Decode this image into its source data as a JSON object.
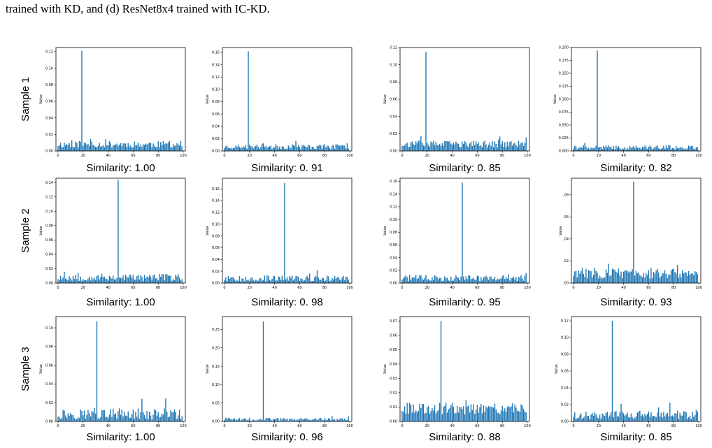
{
  "caption": "trained with KD, and (d) ResNet8x4 trained with IC-KD.",
  "rows": [
    "Sample 1",
    "Sample 2",
    "Sample 3"
  ],
  "colors": {
    "bar": "#1f77b4",
    "axis": "#000000"
  },
  "chart_data": [
    {
      "type": "bar",
      "row": 0,
      "col": 0,
      "similarity_label": "Similarity: 1.00",
      "ylabel": "Value",
      "xlim": [
        0,
        100
      ],
      "xticks": [
        0,
        20,
        40,
        60,
        80,
        100
      ],
      "ylim": [
        0,
        0.125
      ],
      "yticks": [
        0.0,
        0.02,
        0.04,
        0.06,
        0.08,
        0.1,
        0.12
      ],
      "ytick_labels": [
        "0.00",
        "0.02",
        "0.04",
        "0.06",
        "0.08",
        "0.10",
        "0.12"
      ],
      "peak_index": 19,
      "peak_value": 0.121,
      "baseline": 0.008,
      "noise": 0.004,
      "seed": 11
    },
    {
      "type": "bar",
      "row": 0,
      "col": 1,
      "similarity_label": "Similarity: 0. 91",
      "ylabel": "Value",
      "xlim": [
        0,
        100
      ],
      "xticks": [
        0,
        20,
        40,
        60,
        80,
        100
      ],
      "ylim": [
        0,
        0.168
      ],
      "yticks": [
        0.0,
        0.02,
        0.04,
        0.06,
        0.08,
        0.1,
        0.12,
        0.14,
        0.16
      ],
      "ytick_labels": [
        "0.00",
        "0.02",
        "0.04",
        "0.06",
        "0.08",
        "0.10",
        "0.12",
        "0.14",
        "0.16"
      ],
      "peak_index": 19,
      "peak_value": 0.162,
      "baseline": 0.007,
      "noise": 0.004,
      "seed": 23
    },
    {
      "type": "bar",
      "row": 0,
      "col": 2,
      "similarity_label": "Similarity: 0. 85",
      "ylabel": "Value",
      "xlim": [
        0,
        100
      ],
      "xticks": [
        0,
        20,
        40,
        60,
        80,
        100
      ],
      "ylim": [
        0,
        0.12
      ],
      "yticks": [
        0.0,
        0.02,
        0.04,
        0.06,
        0.08,
        0.1,
        0.12
      ],
      "ytick_labels": [
        "0.00",
        "0.02",
        "0.04",
        "0.06",
        "0.08",
        "0.10",
        "0.12"
      ],
      "peak_index": 19,
      "peak_value": 0.115,
      "baseline": 0.008,
      "noise": 0.004,
      "seed": 37
    },
    {
      "type": "bar",
      "row": 0,
      "col": 3,
      "similarity_label": "Similarity: 0. 82",
      "ylabel": "Value",
      "xlim": [
        0,
        100
      ],
      "xticks": [
        0,
        20,
        40,
        60,
        80,
        100
      ],
      "ylim": [
        0,
        0.2
      ],
      "yticks": [
        0.0,
        0.025,
        0.05,
        0.075,
        0.1,
        0.125,
        0.15,
        0.175,
        0.2
      ],
      "ytick_labels": [
        "0.000",
        "0.025",
        "0.050",
        "0.075",
        "0.100",
        "0.125",
        "0.150",
        "0.175",
        "0.200"
      ],
      "peak_index": 19,
      "peak_value": 0.194,
      "baseline": 0.007,
      "noise": 0.004,
      "seed": 41
    },
    {
      "type": "bar",
      "row": 1,
      "col": 0,
      "similarity_label": "Similarity: 1.00",
      "ylabel": "Value",
      "xlim": [
        0,
        100
      ],
      "xticks": [
        0,
        20,
        40,
        60,
        80,
        100
      ],
      "ylim": [
        0,
        0.146
      ],
      "yticks": [
        0.0,
        0.02,
        0.04,
        0.06,
        0.08,
        0.1,
        0.12,
        0.14
      ],
      "ytick_labels": [
        "0.00",
        "0.02",
        "0.04",
        "0.06",
        "0.08",
        "0.10",
        "0.12",
        "0.14"
      ],
      "peak_index": 48,
      "peak_value": 0.144,
      "baseline": 0.008,
      "noise": 0.005,
      "seed": 53
    },
    {
      "type": "bar",
      "row": 1,
      "col": 1,
      "similarity_label": "Similarity: 0. 98",
      "ylabel": "Value",
      "xlim": [
        0,
        100
      ],
      "xticks": [
        0,
        20,
        40,
        60,
        80,
        100
      ],
      "ylim": [
        0,
        0.178
      ],
      "yticks": [
        0.0,
        0.02,
        0.04,
        0.06,
        0.08,
        0.1,
        0.12,
        0.14,
        0.16
      ],
      "ytick_labels": [
        "0.00",
        "0.02",
        "0.04",
        "0.06",
        "0.08",
        "0.10",
        "0.12",
        "0.14",
        "0.16"
      ],
      "peak_index": 48,
      "peak_value": 0.17,
      "baseline": 0.008,
      "noise": 0.005,
      "seed": 67
    },
    {
      "type": "bar",
      "row": 1,
      "col": 2,
      "similarity_label": "Similarity: 0. 95",
      "ylabel": "Value",
      "xlim": [
        0,
        100
      ],
      "xticks": [
        0,
        20,
        40,
        60,
        80,
        100
      ],
      "ylim": [
        0,
        0.165
      ],
      "yticks": [
        0.0,
        0.02,
        0.04,
        0.06,
        0.08,
        0.1,
        0.12,
        0.14,
        0.16
      ],
      "ytick_labels": [
        "0.00",
        "0.02",
        "0.04",
        "0.06",
        "0.08",
        "0.10",
        "0.12",
        "0.14",
        "0.16"
      ],
      "peak_index": 48,
      "peak_value": 0.158,
      "baseline": 0.008,
      "noise": 0.005,
      "seed": 71
    },
    {
      "type": "bar",
      "row": 1,
      "col": 3,
      "similarity_label": "Similarity: 0. 93",
      "ylabel": "Value",
      "xlim": [
        0,
        100
      ],
      "xticks": [
        0,
        20,
        40,
        60,
        80,
        100
      ],
      "ylim": [
        0,
        0.095
      ],
      "yticks": [
        0.0,
        0.02,
        0.04,
        0.06,
        0.08
      ],
      "ytick_labels": [
        ".00",
        ".02",
        ".04",
        ".06",
        ".08"
      ],
      "peak_index": 48,
      "peak_value": 0.092,
      "baseline": 0.009,
      "noise": 0.005,
      "seed": 83
    },
    {
      "type": "bar",
      "row": 2,
      "col": 0,
      "similarity_label": "Similarity: 1.00",
      "ylabel": "Value",
      "xlim": [
        0,
        100
      ],
      "xticks": [
        0,
        20,
        40,
        60,
        80,
        100
      ],
      "ylim": [
        0,
        0.112
      ],
      "yticks": [
        0.0,
        0.02,
        0.04,
        0.06,
        0.08,
        0.1
      ],
      "ytick_labels": [
        "0.00",
        "0.02",
        "0.04",
        "0.06",
        "0.08",
        "0.10"
      ],
      "peak_index": 31,
      "peak_value": 0.107,
      "baseline": 0.008,
      "noise": 0.006,
      "seed": 97
    },
    {
      "type": "bar",
      "row": 2,
      "col": 1,
      "similarity_label": "Similarity: 0. 96",
      "ylabel": "Value",
      "xlim": [
        0,
        100
      ],
      "xticks": [
        0,
        20,
        40,
        60,
        80,
        100
      ],
      "ylim": [
        0,
        0.285
      ],
      "yticks": [
        0.0,
        0.05,
        0.1,
        0.15,
        0.2,
        0.25
      ],
      "ytick_labels": [
        "0.00",
        "0.05",
        "0.10",
        "0.15",
        "0.20",
        "0.25"
      ],
      "peak_index": 31,
      "peak_value": 0.272,
      "baseline": 0.006,
      "noise": 0.004,
      "seed": 101
    },
    {
      "type": "bar",
      "row": 2,
      "col": 2,
      "similarity_label": "Similarity: 0. 88",
      "ylabel": "Value",
      "xlim": [
        0,
        100
      ],
      "xticks": [
        0,
        20,
        40,
        60,
        80,
        100
      ],
      "ylim": [
        0,
        0.073
      ],
      "yticks": [
        0.0,
        0.01,
        0.02,
        0.03,
        0.04,
        0.05,
        0.06,
        0.07
      ],
      "ytick_labels": [
        "0.00",
        "0.01",
        "0.02",
        "0.03",
        "0.04",
        "0.05",
        "0.06",
        "0.07"
      ],
      "peak_index": 31,
      "peak_value": 0.07,
      "baseline": 0.009,
      "noise": 0.004,
      "seed": 113
    },
    {
      "type": "bar",
      "row": 2,
      "col": 3,
      "similarity_label": "Similarity: 0. 85",
      "ylabel": "Value",
      "xlim": [
        0,
        100
      ],
      "xticks": [
        0,
        20,
        40,
        60,
        80,
        100
      ],
      "ylim": [
        0,
        0.125
      ],
      "yticks": [
        0.0,
        0.02,
        0.04,
        0.06,
        0.08,
        0.1,
        0.12
      ],
      "ytick_labels": [
        "0.00",
        "0.02",
        "0.04",
        "0.06",
        "0.08",
        "0.10",
        "0.12"
      ],
      "peak_index": 31,
      "peak_value": 0.12,
      "baseline": 0.008,
      "noise": 0.005,
      "seed": 127
    }
  ]
}
